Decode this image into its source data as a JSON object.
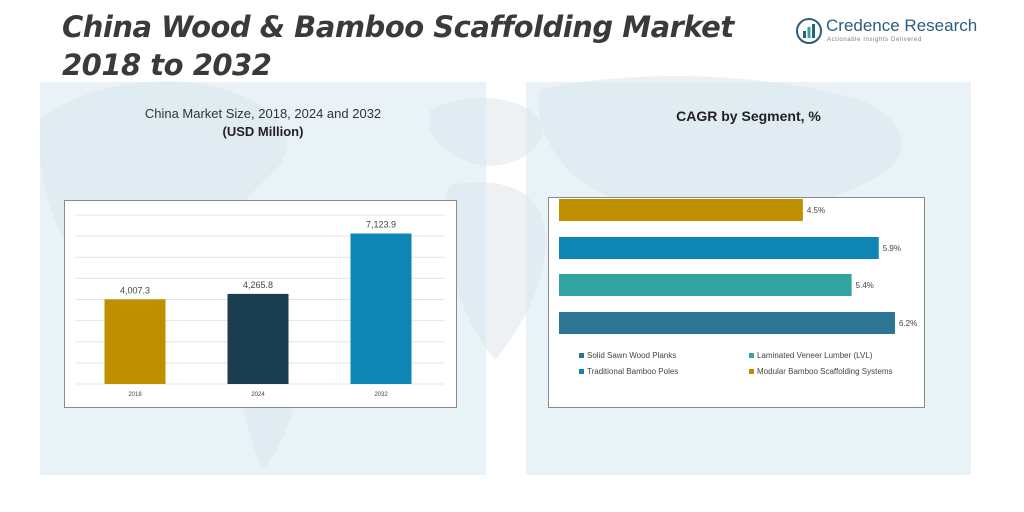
{
  "page_title": "China Wood & Bamboo Scaffolding Market 2018 to 2032",
  "brand": {
    "name": "Credence Research",
    "tagline": "Actionable Insights Delivered",
    "logo_icon": "bar-chart-circle-icon"
  },
  "left_panel": {
    "subtitle": "China Market Size, 2018, 2024 and 2032",
    "unit": "(USD Million)"
  },
  "right_panel": {
    "title": "CAGR by Segment, %"
  },
  "colors": {
    "bar_2018": "#bf8f00",
    "bar_2024": "#1a3e4f",
    "bar_2032": "#0e85b4",
    "solid_sawn": "#2e7595",
    "lvl": "#31a3a0",
    "traditional_bamboo": "#0e85b4",
    "modular_bamboo": "#bf8f00"
  },
  "chart_data": [
    {
      "type": "bar",
      "title": "China Market Size, 2018, 2024 and 2032",
      "ylabel": "(USD Million)",
      "categories": [
        "2018",
        "2024",
        "2032"
      ],
      "values": [
        4007.3,
        4265.8,
        7123.9
      ],
      "value_labels": [
        "4,007.3",
        "4,265.8",
        "7,123.9"
      ],
      "ylim": [
        0,
        8000
      ],
      "grid": true
    },
    {
      "type": "bar",
      "orientation": "horizontal",
      "title": "CAGR by Segment, %",
      "categories": [
        "Modular Bamboo Scaffolding Systems",
        "Traditional Bamboo Poles",
        "Laminated Veneer Lumber (LVL)",
        "Solid Sawn Wood Planks"
      ],
      "values": [
        4.5,
        5.9,
        5.4,
        6.2
      ],
      "value_labels": [
        "4.5%",
        "5.9%",
        "5.4%",
        "6.2%"
      ],
      "legend": [
        "Solid Sawn Wood Planks",
        "Laminated Veneer Lumber (LVL)",
        "Traditional Bamboo Poles",
        "Modular Bamboo Scaffolding Systems"
      ],
      "legend_position": "bottom"
    }
  ]
}
